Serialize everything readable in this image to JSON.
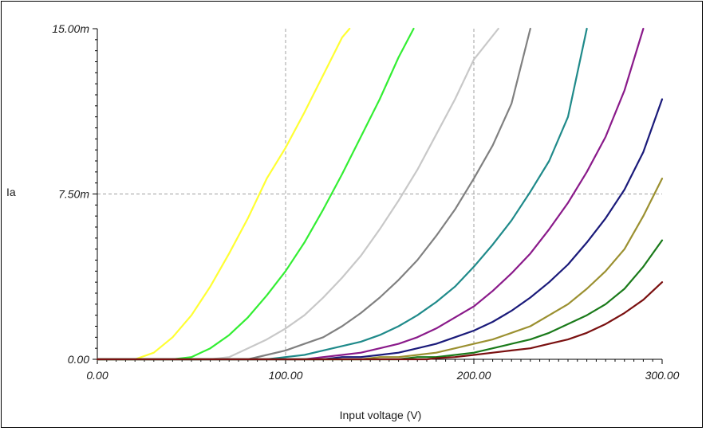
{
  "chart_data": {
    "type": "line",
    "xlabel": "Input voltage (V)",
    "ylabel": "Ia",
    "xlim": [
      0,
      300
    ],
    "ylim": [
      0,
      15
    ],
    "x_ticks": [
      {
        "value": 0,
        "label": "0.00"
      },
      {
        "value": 100,
        "label": "100.00"
      },
      {
        "value": 200,
        "label": "200.00"
      },
      {
        "value": 300,
        "label": "300.00"
      }
    ],
    "y_ticks": [
      {
        "value": 0,
        "label": "0.00"
      },
      {
        "value": 7.5,
        "label": "7.50m"
      },
      {
        "value": 15,
        "label": "15.00m"
      }
    ],
    "grid": "dashed at 100, 200 (x) and 7.50m (y)",
    "series": [
      {
        "color": "#ffff33",
        "points": [
          [
            0,
            0
          ],
          [
            20,
            0
          ],
          [
            30,
            0.3
          ],
          [
            40,
            1.0
          ],
          [
            50,
            2.0
          ],
          [
            60,
            3.3
          ],
          [
            70,
            4.8
          ],
          [
            80,
            6.4
          ],
          [
            90,
            8.2
          ],
          [
            100,
            9.6
          ],
          [
            110,
            11.2
          ],
          [
            120,
            12.9
          ],
          [
            130,
            14.6
          ],
          [
            134,
            15
          ]
        ]
      },
      {
        "color": "#33ee33",
        "points": [
          [
            0,
            0
          ],
          [
            40,
            0
          ],
          [
            50,
            0.1
          ],
          [
            60,
            0.5
          ],
          [
            70,
            1.1
          ],
          [
            80,
            1.9
          ],
          [
            90,
            2.9
          ],
          [
            100,
            4.0
          ],
          [
            110,
            5.3
          ],
          [
            120,
            6.8
          ],
          [
            130,
            8.4
          ],
          [
            140,
            10.1
          ],
          [
            150,
            11.8
          ],
          [
            160,
            13.7
          ],
          [
            168,
            15
          ]
        ]
      },
      {
        "color": "#c8c8c8",
        "points": [
          [
            0,
            0
          ],
          [
            60,
            0
          ],
          [
            70,
            0.1
          ],
          [
            80,
            0.5
          ],
          [
            90,
            0.9
          ],
          [
            100,
            1.4
          ],
          [
            110,
            2.0
          ],
          [
            120,
            2.8
          ],
          [
            130,
            3.7
          ],
          [
            140,
            4.7
          ],
          [
            150,
            5.9
          ],
          [
            160,
            7.2
          ],
          [
            170,
            8.6
          ],
          [
            180,
            10.2
          ],
          [
            190,
            11.8
          ],
          [
            200,
            13.6
          ],
          [
            213,
            15
          ]
        ]
      },
      {
        "color": "#808080",
        "points": [
          [
            0,
            0
          ],
          [
            80,
            0
          ],
          [
            90,
            0.2
          ],
          [
            100,
            0.4
          ],
          [
            110,
            0.7
          ],
          [
            120,
            1.0
          ],
          [
            130,
            1.5
          ],
          [
            140,
            2.1
          ],
          [
            150,
            2.8
          ],
          [
            160,
            3.6
          ],
          [
            170,
            4.5
          ],
          [
            180,
            5.6
          ],
          [
            190,
            6.8
          ],
          [
            200,
            8.2
          ],
          [
            210,
            9.7
          ],
          [
            220,
            11.6
          ],
          [
            230,
            15
          ]
        ]
      },
      {
        "color": "#1f8a8a",
        "points": [
          [
            0,
            0
          ],
          [
            90,
            0
          ],
          [
            100,
            0.1
          ],
          [
            110,
            0.2
          ],
          [
            120,
            0.4
          ],
          [
            130,
            0.6
          ],
          [
            140,
            0.8
          ],
          [
            150,
            1.1
          ],
          [
            160,
            1.5
          ],
          [
            170,
            2.0
          ],
          [
            180,
            2.6
          ],
          [
            190,
            3.3
          ],
          [
            200,
            4.2
          ],
          [
            210,
            5.2
          ],
          [
            220,
            6.3
          ],
          [
            230,
            7.6
          ],
          [
            240,
            9.0
          ],
          [
            250,
            11.0
          ],
          [
            260,
            15
          ]
        ]
      },
      {
        "color": "#8a1a8a",
        "points": [
          [
            0,
            0
          ],
          [
            110,
            0
          ],
          [
            120,
            0.1
          ],
          [
            130,
            0.2
          ],
          [
            140,
            0.3
          ],
          [
            150,
            0.5
          ],
          [
            160,
            0.7
          ],
          [
            170,
            1.0
          ],
          [
            180,
            1.4
          ],
          [
            190,
            1.9
          ],
          [
            200,
            2.4
          ],
          [
            210,
            3.1
          ],
          [
            220,
            3.9
          ],
          [
            230,
            4.8
          ],
          [
            240,
            5.9
          ],
          [
            250,
            7.1
          ],
          [
            260,
            8.5
          ],
          [
            270,
            10.1
          ],
          [
            280,
            12.2
          ],
          [
            290,
            15
          ]
        ]
      },
      {
        "color": "#1a1a7a",
        "points": [
          [
            0,
            0
          ],
          [
            120,
            0
          ],
          [
            130,
            0.1
          ],
          [
            140,
            0.1
          ],
          [
            150,
            0.2
          ],
          [
            160,
            0.3
          ],
          [
            170,
            0.5
          ],
          [
            180,
            0.7
          ],
          [
            190,
            1.0
          ],
          [
            200,
            1.3
          ],
          [
            210,
            1.7
          ],
          [
            220,
            2.2
          ],
          [
            230,
            2.8
          ],
          [
            240,
            3.5
          ],
          [
            250,
            4.3
          ],
          [
            260,
            5.3
          ],
          [
            270,
            6.4
          ],
          [
            280,
            7.7
          ],
          [
            290,
            9.4
          ],
          [
            300,
            11.8
          ]
        ]
      },
      {
        "color": "#9b9030",
        "points": [
          [
            0,
            0
          ],
          [
            140,
            0
          ],
          [
            150,
            0.1
          ],
          [
            160,
            0.1
          ],
          [
            170,
            0.2
          ],
          [
            180,
            0.3
          ],
          [
            190,
            0.5
          ],
          [
            200,
            0.7
          ],
          [
            210,
            0.9
          ],
          [
            220,
            1.2
          ],
          [
            230,
            1.5
          ],
          [
            240,
            2.0
          ],
          [
            250,
            2.5
          ],
          [
            260,
            3.2
          ],
          [
            270,
            4.0
          ],
          [
            280,
            5.0
          ],
          [
            290,
            6.5
          ],
          [
            300,
            8.2
          ]
        ]
      },
      {
        "color": "#1a7a1a",
        "points": [
          [
            0,
            0
          ],
          [
            160,
            0
          ],
          [
            170,
            0.1
          ],
          [
            180,
            0.1
          ],
          [
            190,
            0.2
          ],
          [
            200,
            0.3
          ],
          [
            210,
            0.5
          ],
          [
            220,
            0.7
          ],
          [
            230,
            0.9
          ],
          [
            240,
            1.2
          ],
          [
            250,
            1.6
          ],
          [
            260,
            2.0
          ],
          [
            270,
            2.5
          ],
          [
            280,
            3.2
          ],
          [
            290,
            4.2
          ],
          [
            300,
            5.4
          ]
        ]
      },
      {
        "color": "#7a1010",
        "points": [
          [
            0,
            0
          ],
          [
            175,
            0
          ],
          [
            180,
            0.05
          ],
          [
            190,
            0.1
          ],
          [
            200,
            0.2
          ],
          [
            210,
            0.3
          ],
          [
            220,
            0.4
          ],
          [
            230,
            0.5
          ],
          [
            240,
            0.7
          ],
          [
            250,
            0.9
          ],
          [
            260,
            1.2
          ],
          [
            270,
            1.6
          ],
          [
            280,
            2.1
          ],
          [
            290,
            2.7
          ],
          [
            300,
            3.5
          ]
        ]
      }
    ]
  }
}
